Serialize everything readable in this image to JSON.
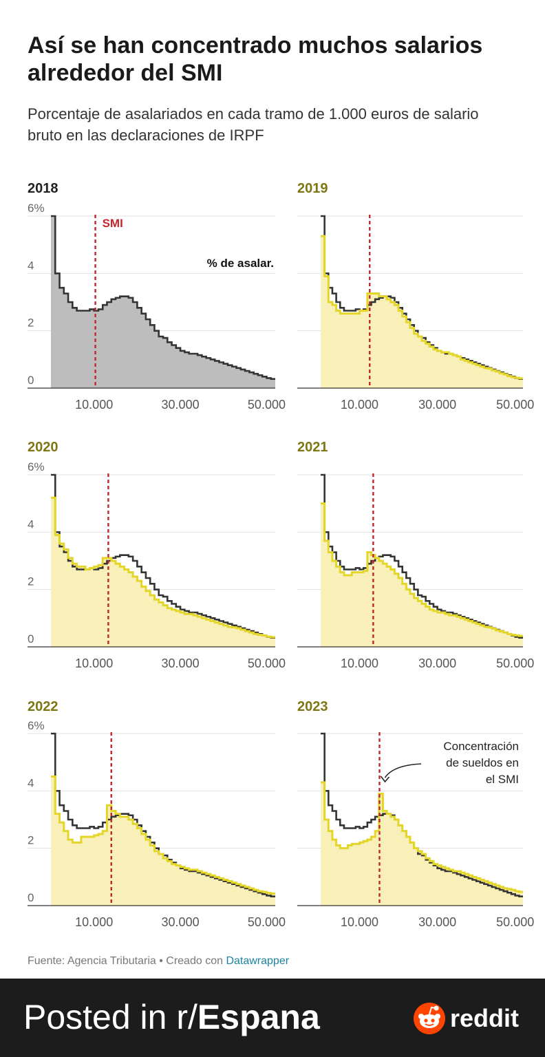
{
  "title": "Así se han concentrado muchos salarios alrededor del SMI",
  "subtitle": "Porcentaje de asalariados en cada tramo de 1.000 euros de salario bruto en las declaraciones de IRPF",
  "source_prefix": "Fuente: Agencia Tributaria • Creado con ",
  "source_link": "Datawrapper",
  "footer": {
    "prefix": "Posted in r/",
    "subreddit": "Espana",
    "brand": "reddit"
  },
  "colors": {
    "baseline_line": "#333333",
    "baseline_fill": "#bdbdbd",
    "year_line": "#e3d629",
    "year_fill": "#f8f0b8",
    "smi": "#c0272d",
    "year_label": "#7d7612"
  },
  "chart_data": {
    "type": "area",
    "x_unit": "euros",
    "y_unit": "%",
    "ylim": [
      0,
      6
    ],
    "y_ticks": [
      0,
      2,
      4,
      6
    ],
    "y_tick_labels": [
      "0",
      "2",
      "4",
      "6%"
    ],
    "x_ticks": [
      10000,
      30000,
      50000
    ],
    "x_tick_labels": [
      "10.000",
      "30.000",
      "50.000"
    ],
    "grid": true,
    "smi_label": "SMI",
    "series_label": "% de asalar.",
    "annotation": "Concentración de sueldos en el SMI",
    "baseline_year": "2018",
    "baseline_values": [
      6.0,
      4.0,
      3.5,
      3.3,
      3.0,
      2.8,
      2.7,
      2.7,
      2.7,
      2.75,
      2.7,
      2.75,
      2.9,
      3.0,
      3.1,
      3.15,
      3.2,
      3.2,
      3.15,
      3.0,
      2.8,
      2.6,
      2.4,
      2.2,
      2.0,
      1.8,
      1.75,
      1.6,
      1.5,
      1.4,
      1.3,
      1.25,
      1.2,
      1.2,
      1.15,
      1.1,
      1.05,
      1.0,
      0.95,
      0.9,
      0.85,
      0.8,
      0.75,
      0.7,
      0.65,
      0.6,
      0.55,
      0.5,
      0.45,
      0.4,
      0.35,
      0.32
    ],
    "panels": [
      {
        "year": "2018",
        "smi": 10302,
        "values": []
      },
      {
        "year": "2019",
        "smi": 12600,
        "values": [
          5.3,
          3.9,
          3.0,
          2.9,
          2.7,
          2.6,
          2.6,
          2.6,
          2.6,
          2.6,
          2.7,
          2.7,
          3.3,
          3.3,
          3.3,
          3.2,
          3.2,
          3.1,
          3.0,
          2.9,
          2.7,
          2.5,
          2.3,
          2.1,
          1.9,
          1.8,
          1.65,
          1.55,
          1.45,
          1.35,
          1.3,
          1.25,
          1.25,
          1.2,
          1.15,
          1.1,
          1.0,
          0.95,
          0.9,
          0.85,
          0.8,
          0.75,
          0.7,
          0.68,
          0.62,
          0.58,
          0.52,
          0.48,
          0.42,
          0.38,
          0.36,
          0.34
        ]
      },
      {
        "year": "2020",
        "smi": 13300,
        "values": [
          5.2,
          3.9,
          3.6,
          3.4,
          3.1,
          2.9,
          2.8,
          2.8,
          2.7,
          2.75,
          2.8,
          2.85,
          3.1,
          3.1,
          3.0,
          2.9,
          2.8,
          2.7,
          2.6,
          2.45,
          2.3,
          2.1,
          1.95,
          1.8,
          1.65,
          1.55,
          1.45,
          1.35,
          1.3,
          1.25,
          1.2,
          1.15,
          1.15,
          1.1,
          1.05,
          1.0,
          0.95,
          0.9,
          0.85,
          0.8,
          0.75,
          0.7,
          0.68,
          0.65,
          0.6,
          0.55,
          0.5,
          0.45,
          0.42,
          0.4,
          0.36,
          0.34
        ]
      },
      {
        "year": "2021",
        "smi": 13510,
        "values": [
          5.0,
          3.7,
          3.3,
          3.0,
          2.8,
          2.6,
          2.5,
          2.5,
          2.6,
          2.6,
          2.6,
          2.65,
          3.3,
          3.2,
          3.1,
          3.0,
          2.9,
          2.8,
          2.7,
          2.55,
          2.4,
          2.2,
          2.0,
          1.85,
          1.7,
          1.6,
          1.5,
          1.4,
          1.3,
          1.25,
          1.2,
          1.2,
          1.15,
          1.1,
          1.1,
          1.05,
          1.0,
          0.95,
          0.9,
          0.85,
          0.8,
          0.75,
          0.7,
          0.68,
          0.64,
          0.58,
          0.54,
          0.5,
          0.45,
          0.42,
          0.4,
          0.38
        ]
      },
      {
        "year": "2022",
        "smi": 14000,
        "values": [
          4.5,
          3.2,
          2.9,
          2.6,
          2.3,
          2.2,
          2.2,
          2.4,
          2.4,
          2.4,
          2.45,
          2.5,
          2.6,
          3.5,
          3.3,
          3.2,
          3.1,
          3.1,
          3.0,
          2.85,
          2.7,
          2.5,
          2.3,
          2.1,
          1.9,
          1.8,
          1.65,
          1.55,
          1.45,
          1.4,
          1.35,
          1.3,
          1.25,
          1.25,
          1.2,
          1.15,
          1.1,
          1.05,
          1.0,
          0.95,
          0.9,
          0.85,
          0.8,
          0.75,
          0.7,
          0.65,
          0.6,
          0.55,
          0.5,
          0.48,
          0.44,
          0.42
        ]
      },
      {
        "year": "2023",
        "smi": 15120,
        "values": [
          4.3,
          3.0,
          2.6,
          2.3,
          2.1,
          2.0,
          2.0,
          2.1,
          2.15,
          2.15,
          2.2,
          2.25,
          2.3,
          2.4,
          2.6,
          3.9,
          3.3,
          3.2,
          3.1,
          3.0,
          2.8,
          2.6,
          2.4,
          2.2,
          2.0,
          1.9,
          1.8,
          1.65,
          1.55,
          1.45,
          1.4,
          1.35,
          1.3,
          1.25,
          1.2,
          1.2,
          1.15,
          1.1,
          1.05,
          1.0,
          0.95,
          0.9,
          0.85,
          0.8,
          0.75,
          0.7,
          0.65,
          0.6,
          0.58,
          0.55,
          0.5,
          0.48
        ]
      }
    ]
  }
}
